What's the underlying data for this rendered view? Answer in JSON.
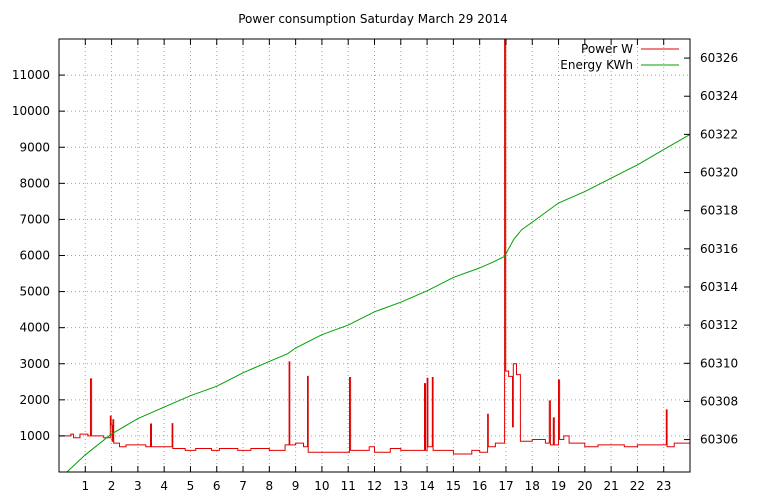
{
  "chart_data": {
    "type": "line",
    "title": "Power consumption Saturday March 29 2014",
    "xlabel": "",
    "ylabel": "",
    "y2label": "",
    "x_unit": "hours",
    "xlim": [
      0,
      24
    ],
    "ylim": [
      0,
      12000
    ],
    "y2lim": [
      60304.3,
      60327.0
    ],
    "x_ticks": [
      1,
      2,
      3,
      4,
      5,
      6,
      7,
      8,
      9,
      10,
      11,
      12,
      13,
      14,
      15,
      16,
      17,
      18,
      19,
      20,
      21,
      22,
      23
    ],
    "y_ticks": [
      1000,
      2000,
      3000,
      4000,
      5000,
      6000,
      7000,
      8000,
      9000,
      10000,
      11000
    ],
    "y2_ticks": [
      60306,
      60308,
      60310,
      60312,
      60314,
      60316,
      60318,
      60320,
      60322,
      60324,
      60326
    ],
    "grid": true,
    "legend_position": "top-right",
    "series": [
      {
        "name": "Power W",
        "axis": "y",
        "color": "#e00000",
        "points": [
          [
            0.0,
            1000
          ],
          [
            0.45,
            1000
          ],
          [
            0.45,
            1050
          ],
          [
            0.55,
            1050
          ],
          [
            0.55,
            950
          ],
          [
            0.8,
            950
          ],
          [
            0.8,
            1050
          ],
          [
            1.1,
            1050
          ],
          [
            1.1,
            1000
          ],
          [
            1.2,
            1000
          ],
          [
            1.2,
            2580
          ],
          [
            1.24,
            2580
          ],
          [
            1.24,
            1000
          ],
          [
            1.7,
            1000
          ],
          [
            1.7,
            950
          ],
          [
            1.95,
            950
          ],
          [
            1.95,
            1550
          ],
          [
            1.98,
            1550
          ],
          [
            1.98,
            1300
          ],
          [
            2.02,
            1300
          ],
          [
            2.02,
            850
          ],
          [
            2.05,
            850
          ],
          [
            2.05,
            1450
          ],
          [
            2.08,
            1450
          ],
          [
            2.08,
            800
          ],
          [
            2.3,
            800
          ],
          [
            2.3,
            700
          ],
          [
            2.55,
            700
          ],
          [
            2.55,
            750
          ],
          [
            3.3,
            750
          ],
          [
            3.3,
            700
          ],
          [
            3.48,
            700
          ],
          [
            3.48,
            1330
          ],
          [
            3.52,
            1330
          ],
          [
            3.52,
            700
          ],
          [
            4.3,
            700
          ],
          [
            4.3,
            1340
          ],
          [
            4.33,
            1340
          ],
          [
            4.33,
            650
          ],
          [
            4.8,
            650
          ],
          [
            4.8,
            600
          ],
          [
            5.2,
            600
          ],
          [
            5.2,
            650
          ],
          [
            5.8,
            650
          ],
          [
            5.8,
            600
          ],
          [
            6.1,
            600
          ],
          [
            6.1,
            650
          ],
          [
            6.8,
            650
          ],
          [
            6.8,
            600
          ],
          [
            7.3,
            600
          ],
          [
            7.3,
            650
          ],
          [
            8.0,
            650
          ],
          [
            8.0,
            600
          ],
          [
            8.6,
            600
          ],
          [
            8.6,
            750
          ],
          [
            8.75,
            750
          ],
          [
            8.75,
            3050
          ],
          [
            8.78,
            3050
          ],
          [
            8.78,
            750
          ],
          [
            9.0,
            750
          ],
          [
            9.0,
            800
          ],
          [
            9.3,
            800
          ],
          [
            9.3,
            700
          ],
          [
            9.45,
            700
          ],
          [
            9.45,
            2650
          ],
          [
            9.48,
            2650
          ],
          [
            9.48,
            550
          ],
          [
            11.05,
            550
          ],
          [
            11.05,
            2620
          ],
          [
            11.09,
            2620
          ],
          [
            11.09,
            600
          ],
          [
            11.8,
            600
          ],
          [
            11.8,
            700
          ],
          [
            12.0,
            700
          ],
          [
            12.0,
            550
          ],
          [
            12.6,
            550
          ],
          [
            12.6,
            650
          ],
          [
            13.0,
            650
          ],
          [
            13.0,
            600
          ],
          [
            13.9,
            600
          ],
          [
            13.9,
            2450
          ],
          [
            13.94,
            2450
          ],
          [
            13.94,
            600
          ],
          [
            14.0,
            600
          ],
          [
            14.0,
            2600
          ],
          [
            14.03,
            2600
          ],
          [
            14.03,
            700
          ],
          [
            14.2,
            700
          ],
          [
            14.2,
            2620
          ],
          [
            14.23,
            2620
          ],
          [
            14.23,
            600
          ],
          [
            15.0,
            600
          ],
          [
            15.0,
            500
          ],
          [
            15.7,
            500
          ],
          [
            15.7,
            600
          ],
          [
            16.0,
            600
          ],
          [
            16.0,
            550
          ],
          [
            16.3,
            550
          ],
          [
            16.3,
            1600
          ],
          [
            16.33,
            1600
          ],
          [
            16.33,
            700
          ],
          [
            16.6,
            700
          ],
          [
            16.6,
            800
          ],
          [
            16.95,
            800
          ],
          [
            16.95,
            12000
          ],
          [
            16.99,
            12000
          ],
          [
            16.99,
            2800
          ],
          [
            17.1,
            2800
          ],
          [
            17.1,
            2650
          ],
          [
            17.25,
            2650
          ],
          [
            17.25,
            1250
          ],
          [
            17.28,
            1250
          ],
          [
            17.28,
            3000
          ],
          [
            17.4,
            3000
          ],
          [
            17.4,
            2700
          ],
          [
            17.55,
            2700
          ],
          [
            17.55,
            850
          ],
          [
            18.0,
            850
          ],
          [
            18.0,
            900
          ],
          [
            18.5,
            900
          ],
          [
            18.5,
            800
          ],
          [
            18.65,
            800
          ],
          [
            18.65,
            1970
          ],
          [
            18.69,
            1970
          ],
          [
            18.69,
            750
          ],
          [
            18.8,
            750
          ],
          [
            18.8,
            1500
          ],
          [
            18.84,
            1500
          ],
          [
            18.84,
            750
          ],
          [
            19.0,
            750
          ],
          [
            19.0,
            2550
          ],
          [
            19.04,
            2550
          ],
          [
            19.04,
            900
          ],
          [
            19.2,
            900
          ],
          [
            19.2,
            1000
          ],
          [
            19.4,
            1000
          ],
          [
            19.4,
            800
          ],
          [
            20.0,
            800
          ],
          [
            20.0,
            700
          ],
          [
            20.5,
            700
          ],
          [
            20.5,
            750
          ],
          [
            21.5,
            750
          ],
          [
            21.5,
            700
          ],
          [
            22.0,
            700
          ],
          [
            22.0,
            750
          ],
          [
            23.1,
            750
          ],
          [
            23.1,
            1720
          ],
          [
            23.13,
            1720
          ],
          [
            23.13,
            700
          ],
          [
            23.4,
            700
          ],
          [
            23.4,
            800
          ],
          [
            24.0,
            800
          ]
        ]
      },
      {
        "name": "Energy KWh",
        "axis": "y2",
        "color": "#00a000",
        "points": [
          [
            0.3,
            60304.3
          ],
          [
            1.0,
            60305.2
          ],
          [
            2.0,
            60306.3
          ],
          [
            3.0,
            60307.1
          ],
          [
            4.0,
            60307.7
          ],
          [
            5.0,
            60308.3
          ],
          [
            6.0,
            60308.8
          ],
          [
            7.0,
            60309.5
          ],
          [
            8.0,
            60310.1
          ],
          [
            8.7,
            60310.5
          ],
          [
            9.0,
            60310.8
          ],
          [
            10.0,
            60311.5
          ],
          [
            11.0,
            60312.0
          ],
          [
            12.0,
            60312.7
          ],
          [
            13.0,
            60313.2
          ],
          [
            14.0,
            60313.8
          ],
          [
            15.0,
            60314.5
          ],
          [
            16.0,
            60315.0
          ],
          [
            16.5,
            60315.3
          ],
          [
            16.95,
            60315.6
          ],
          [
            17.1,
            60316.0
          ],
          [
            17.3,
            60316.5
          ],
          [
            17.6,
            60317.0
          ],
          [
            18.0,
            60317.4
          ],
          [
            19.0,
            60318.4
          ],
          [
            20.0,
            60319.0
          ],
          [
            21.0,
            60319.7
          ],
          [
            22.0,
            60320.4
          ],
          [
            23.0,
            60321.2
          ],
          [
            24.0,
            60322.0
          ]
        ]
      }
    ]
  }
}
